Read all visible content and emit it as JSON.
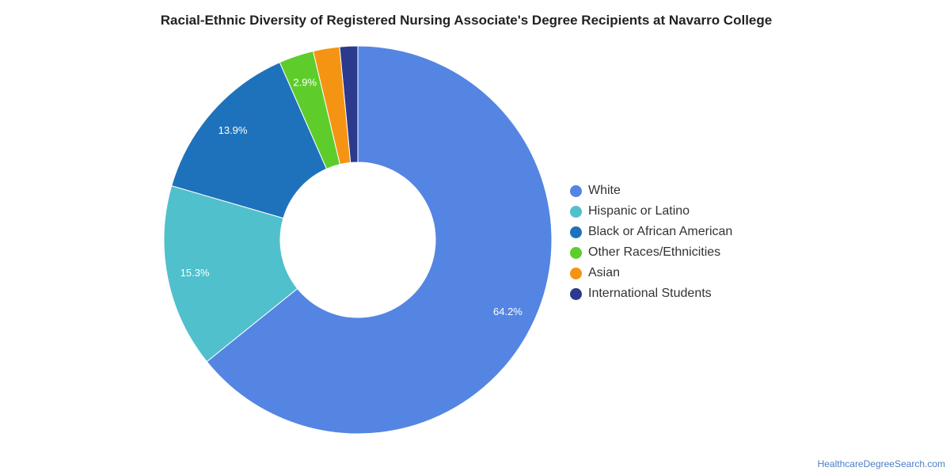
{
  "chart_data": {
    "type": "pie",
    "title": "Racial-Ethnic Diversity of Registered Nursing Associate's Degree Recipients at Navarro College",
    "donut": true,
    "legend_position": "right",
    "categories": [
      "White",
      "Hispanic or Latino",
      "Black or African American",
      "Other Races/Ethnicities",
      "Asian",
      "International Students"
    ],
    "values": [
      64.2,
      15.3,
      13.9,
      2.9,
      2.2,
      1.5
    ],
    "data_labels": [
      "64.2%",
      "15.3%",
      "13.9%",
      "2.9%",
      "",
      ""
    ],
    "colors": [
      "#5485e2",
      "#50c0cc",
      "#1e72bb",
      "#5ecd2b",
      "#f59412",
      "#2b3a8c"
    ]
  },
  "source": "HealthcareDegreeSearch.com"
}
